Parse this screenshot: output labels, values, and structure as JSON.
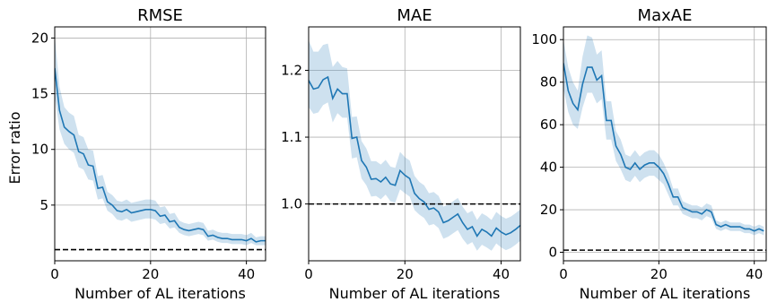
{
  "figure": {
    "shared_ylabel": "Error ratio",
    "line_color": "#1f77b4",
    "band_color": "#1f77b4",
    "reference_line_color": "#000000"
  },
  "chart_data": [
    {
      "type": "line",
      "title": "RMSE",
      "xlabel": "Number of AL iterations",
      "ylabel": "Error ratio",
      "xlim": [
        0,
        44
      ],
      "ylim": [
        0,
        21
      ],
      "xticks": [
        0,
        20,
        40
      ],
      "yticks": [
        5,
        10,
        15,
        20
      ],
      "grid": true,
      "reference_line": 1.0,
      "series": [
        {
          "x": [
            0,
            1,
            2,
            3,
            4,
            5,
            6,
            7,
            8,
            9,
            10,
            11,
            12,
            13,
            14,
            15,
            16,
            17,
            18,
            19,
            20,
            21,
            22,
            23,
            24,
            25,
            26,
            27,
            28,
            29,
            30,
            31,
            32,
            33,
            34,
            35,
            36,
            37,
            38,
            39,
            40,
            41,
            42,
            43,
            44
          ],
          "values": [
            17.3,
            13.5,
            12.0,
            11.6,
            11.3,
            9.8,
            9.6,
            8.6,
            8.5,
            6.5,
            6.6,
            5.3,
            5.0,
            4.5,
            4.4,
            4.6,
            4.3,
            4.4,
            4.5,
            4.6,
            4.6,
            4.5,
            4.0,
            4.1,
            3.5,
            3.6,
            3.0,
            2.8,
            2.7,
            2.8,
            2.9,
            2.8,
            2.2,
            2.3,
            2.1,
            2.0,
            2.0,
            1.9,
            1.9,
            1.9,
            1.8,
            2.0,
            1.7,
            1.8,
            1.8
          ],
          "lower": [
            14.8,
            11.8,
            10.5,
            10.0,
            9.7,
            8.4,
            8.2,
            7.3,
            7.2,
            5.5,
            5.6,
            4.5,
            4.2,
            3.7,
            3.6,
            3.8,
            3.5,
            3.6,
            3.7,
            3.8,
            3.8,
            3.7,
            3.3,
            3.4,
            2.9,
            3.0,
            2.5,
            2.3,
            2.2,
            2.3,
            2.4,
            2.3,
            1.8,
            1.9,
            1.7,
            1.6,
            1.6,
            1.5,
            1.5,
            1.5,
            1.4,
            1.6,
            1.4,
            1.4,
            1.4
          ],
          "upper": [
            20.2,
            15.6,
            13.8,
            13.3,
            13.0,
            11.3,
            11.1,
            10.0,
            9.9,
            7.6,
            7.7,
            6.2,
            5.9,
            5.4,
            5.3,
            5.5,
            5.2,
            5.3,
            5.4,
            5.5,
            5.5,
            5.4,
            4.8,
            4.9,
            4.2,
            4.3,
            3.6,
            3.4,
            3.3,
            3.4,
            3.5,
            3.4,
            2.7,
            2.8,
            2.6,
            2.5,
            2.5,
            2.4,
            2.4,
            2.4,
            2.3,
            2.5,
            2.1,
            2.2,
            2.2
          ]
        }
      ]
    },
    {
      "type": "line",
      "title": "MAE",
      "xlabel": "Number of AL iterations",
      "ylabel": "",
      "xlim": [
        0,
        44
      ],
      "ylim": [
        0.915,
        1.265
      ],
      "xticks": [
        0,
        20,
        40
      ],
      "yticks": [
        1.0,
        1.1,
        1.2
      ],
      "ytick_labels": [
        "1.0",
        "1.1",
        "1.2"
      ],
      "grid": true,
      "reference_line": 1.0,
      "series": [
        {
          "x": [
            0,
            1,
            2,
            3,
            4,
            5,
            6,
            7,
            8,
            9,
            10,
            11,
            12,
            13,
            14,
            15,
            16,
            17,
            18,
            19,
            20,
            21,
            22,
            23,
            24,
            25,
            26,
            27,
            28,
            29,
            30,
            31,
            32,
            33,
            34,
            35,
            36,
            37,
            38,
            39,
            40,
            41,
            42,
            43,
            44
          ],
          "values": [
            1.185,
            1.172,
            1.174,
            1.186,
            1.19,
            1.158,
            1.172,
            1.165,
            1.165,
            1.098,
            1.1,
            1.065,
            1.055,
            1.037,
            1.038,
            1.033,
            1.04,
            1.03,
            1.028,
            1.05,
            1.043,
            1.038,
            1.016,
            1.008,
            1.003,
            0.992,
            0.994,
            0.988,
            0.972,
            0.975,
            0.98,
            0.985,
            0.972,
            0.962,
            0.966,
            0.952,
            0.962,
            0.958,
            0.952,
            0.964,
            0.958,
            0.954,
            0.957,
            0.962,
            0.968
          ],
          "lower": [
            1.145,
            1.135,
            1.137,
            1.148,
            1.152,
            1.122,
            1.136,
            1.129,
            1.129,
            1.068,
            1.07,
            1.038,
            1.028,
            1.011,
            1.012,
            1.007,
            1.014,
            1.004,
            1.002,
            1.022,
            1.016,
            1.011,
            0.991,
            0.984,
            0.979,
            0.968,
            0.97,
            0.964,
            0.948,
            0.951,
            0.956,
            0.961,
            0.948,
            0.939,
            0.943,
            0.93,
            0.939,
            0.935,
            0.93,
            0.941,
            0.935,
            0.931,
            0.934,
            0.939,
            0.945
          ],
          "upper": [
            1.245,
            1.228,
            1.228,
            1.238,
            1.24,
            1.205,
            1.214,
            1.205,
            1.203,
            1.13,
            1.131,
            1.094,
            1.083,
            1.064,
            1.064,
            1.059,
            1.066,
            1.056,
            1.054,
            1.078,
            1.07,
            1.065,
            1.042,
            1.033,
            1.028,
            1.016,
            1.018,
            1.012,
            0.996,
            0.999,
            1.004,
            1.009,
            0.996,
            0.986,
            0.99,
            0.976,
            0.986,
            0.982,
            0.976,
            0.988,
            0.982,
            0.978,
            0.981,
            0.986,
            0.992
          ]
        }
      ]
    },
    {
      "type": "line",
      "title": "MaxAE",
      "xlabel": "Number of AL iterations",
      "ylabel": "",
      "xlim": [
        0,
        42.5
      ],
      "ylim": [
        -4,
        106
      ],
      "xticks": [
        0,
        20,
        40
      ],
      "yticks": [
        0,
        20,
        40,
        60,
        80,
        100
      ],
      "grid": true,
      "reference_line": 1.0,
      "series": [
        {
          "x": [
            0,
            1,
            2,
            3,
            4,
            5,
            6,
            7,
            8,
            9,
            10,
            11,
            12,
            13,
            14,
            15,
            16,
            17,
            18,
            19,
            20,
            21,
            22,
            23,
            24,
            25,
            26,
            27,
            28,
            29,
            30,
            31,
            32,
            33,
            34,
            35,
            36,
            37,
            38,
            39,
            40,
            41,
            42
          ],
          "values": [
            89,
            76,
            70,
            67,
            79,
            87,
            87,
            81,
            83,
            62,
            62,
            50,
            46,
            40,
            39,
            42,
            39,
            41,
            42,
            42,
            40,
            37,
            32,
            26,
            26,
            21,
            20,
            19,
            19,
            18,
            20,
            19,
            13,
            12,
            13,
            12,
            12,
            12,
            11,
            11,
            10,
            11,
            10
          ],
          "lower": [
            77,
            66,
            60,
            58,
            68,
            75,
            75,
            70,
            72,
            53,
            53,
            43,
            39,
            34,
            33,
            36,
            33,
            35,
            36,
            36,
            34,
            32,
            27,
            22,
            22,
            18,
            17,
            16,
            16,
            15,
            17,
            16,
            11,
            10,
            11,
            10,
            10,
            10,
            9,
            9,
            8,
            9,
            8
          ],
          "upper": [
            100,
            87,
            80,
            76,
            92,
            102,
            101,
            93,
            95,
            71,
            71,
            57,
            53,
            46,
            45,
            48,
            45,
            47,
            48,
            48,
            46,
            42,
            37,
            30,
            30,
            24,
            23,
            22,
            22,
            21,
            23,
            22,
            15,
            14,
            15,
            14,
            14,
            14,
            13,
            13,
            12,
            13,
            12
          ]
        }
      ]
    }
  ]
}
